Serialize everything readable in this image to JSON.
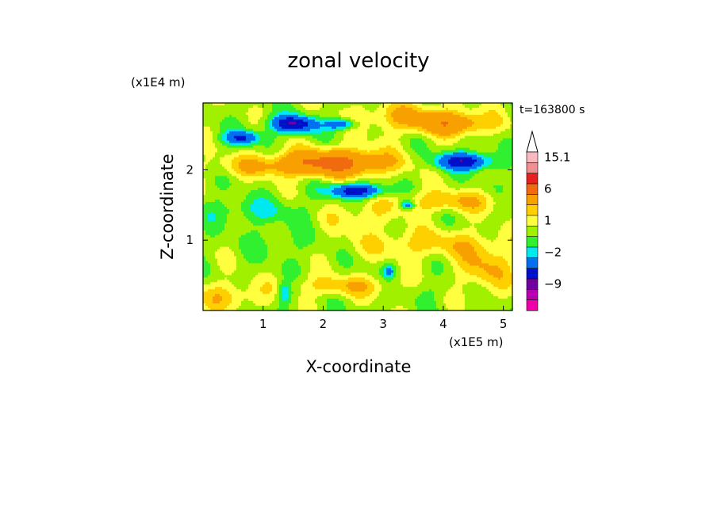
{
  "chart_data": {
    "type": "heatmap",
    "title": "zonal velocity",
    "xlabel": "X-coordinate",
    "ylabel": "Z-coordinate",
    "x_unit": "(x1E5 m)",
    "y_unit": "(x1E4 m)",
    "time_label": "t=163800 s",
    "x_range": [
      0,
      5.15
    ],
    "y_range": [
      0,
      2.95
    ],
    "x_ticks": [
      1,
      2,
      3,
      4,
      5
    ],
    "x_tick_labels": [
      "1",
      "2",
      "3",
      "4",
      "5"
    ],
    "y_ticks": [
      1,
      2
    ],
    "y_tick_labels": [
      "1",
      "2"
    ],
    "colorbar": {
      "labels": [
        {
          "value": 15.1,
          "text": "15.1"
        },
        {
          "value": 6,
          "text": "6"
        },
        {
          "value": 1,
          "text": "1"
        },
        {
          "value": -2,
          "text": "−2"
        },
        {
          "value": -9,
          "text": "−9"
        }
      ],
      "levels": [
        {
          "from": 15.1,
          "to": 20,
          "color": "#f8b8c0"
        },
        {
          "from": 12,
          "to": 15.1,
          "color": "#f09090"
        },
        {
          "from": 9,
          "to": 12,
          "color": "#e82020"
        },
        {
          "from": 6,
          "to": 9,
          "color": "#f06a10"
        },
        {
          "from": 3,
          "to": 6,
          "color": "#f8a000"
        },
        {
          "from": 2,
          "to": 3,
          "color": "#ffd000"
        },
        {
          "from": 1,
          "to": 2,
          "color": "#ffff40"
        },
        {
          "from": 0,
          "to": 1,
          "color": "#a0f000"
        },
        {
          "from": -1,
          "to": 0,
          "color": "#30f030"
        },
        {
          "from": -2,
          "to": -1,
          "color": "#00e8f0"
        },
        {
          "from": -4,
          "to": -2,
          "color": "#0070f0"
        },
        {
          "from": -6,
          "to": -4,
          "color": "#0010c8"
        },
        {
          "from": -9,
          "to": -6,
          "color": "#7000a0"
        },
        {
          "from": -12,
          "to": -9,
          "color": "#b800b0"
        },
        {
          "from": -15,
          "to": -12,
          "color": "#f000a8"
        }
      ]
    },
    "field": {
      "background": 0.5,
      "features": [
        {
          "x": 1.5,
          "y": 2.65,
          "rx": 0.38,
          "ry": 0.12,
          "value": -6.5
        },
        {
          "x": 2.3,
          "y": 2.65,
          "rx": 0.25,
          "ry": 0.08,
          "value": -4.5
        },
        {
          "x": 0.65,
          "y": 2.45,
          "rx": 0.3,
          "ry": 0.1,
          "value": -4.5
        },
        {
          "x": 4.35,
          "y": 2.12,
          "rx": 0.48,
          "ry": 0.12,
          "value": -6.0
        },
        {
          "x": 2.55,
          "y": 1.7,
          "rx": 0.45,
          "ry": 0.1,
          "value": -6.0
        },
        {
          "x": 3.4,
          "y": 1.5,
          "rx": 0.12,
          "ry": 0.06,
          "value": -4.0
        },
        {
          "x": 2.2,
          "y": 2.1,
          "rx": 0.9,
          "ry": 0.18,
          "value": 6.5
        },
        {
          "x": 4.2,
          "y": 2.65,
          "rx": 0.6,
          "ry": 0.15,
          "value": 4.0
        },
        {
          "x": 3.4,
          "y": 2.75,
          "rx": 0.9,
          "ry": 0.2,
          "value": 2.5
        },
        {
          "x": 0.9,
          "y": 2.05,
          "rx": 0.8,
          "ry": 0.15,
          "value": 2.0
        },
        {
          "x": 4.1,
          "y": 1.55,
          "rx": 0.9,
          "ry": 0.15,
          "value": 2.5
        },
        {
          "x": 0.85,
          "y": 1.42,
          "rx": 0.9,
          "ry": 0.18,
          "value": -1.5
        },
        {
          "x": 2.6,
          "y": 1.35,
          "rx": 0.6,
          "ry": 0.2,
          "value": 1.5
        },
        {
          "x": 1.3,
          "y": 0.95,
          "rx": 0.6,
          "ry": 0.25,
          "value": -0.7
        },
        {
          "x": 3.7,
          "y": 0.95,
          "rx": 1.2,
          "ry": 0.2,
          "value": 2.0
        },
        {
          "x": 4.7,
          "y": 0.6,
          "rx": 0.45,
          "ry": 0.35,
          "value": 2.5
        },
        {
          "x": 0.4,
          "y": 0.2,
          "rx": 0.6,
          "ry": 0.2,
          "value": 2.0
        },
        {
          "x": 2.4,
          "y": 0.35,
          "rx": 0.9,
          "ry": 0.15,
          "value": 2.2
        },
        {
          "x": 3.8,
          "y": 0.3,
          "rx": 0.6,
          "ry": 0.15,
          "value": -0.6
        },
        {
          "x": 1.35,
          "y": 0.25,
          "rx": 0.12,
          "ry": 0.15,
          "value": -3.0
        },
        {
          "x": 3.1,
          "y": 0.55,
          "rx": 0.1,
          "ry": 0.1,
          "value": -3.0
        },
        {
          "x": 2.8,
          "y": 2.4,
          "rx": 0.5,
          "ry": 0.12,
          "value": 0.2
        }
      ]
    }
  }
}
